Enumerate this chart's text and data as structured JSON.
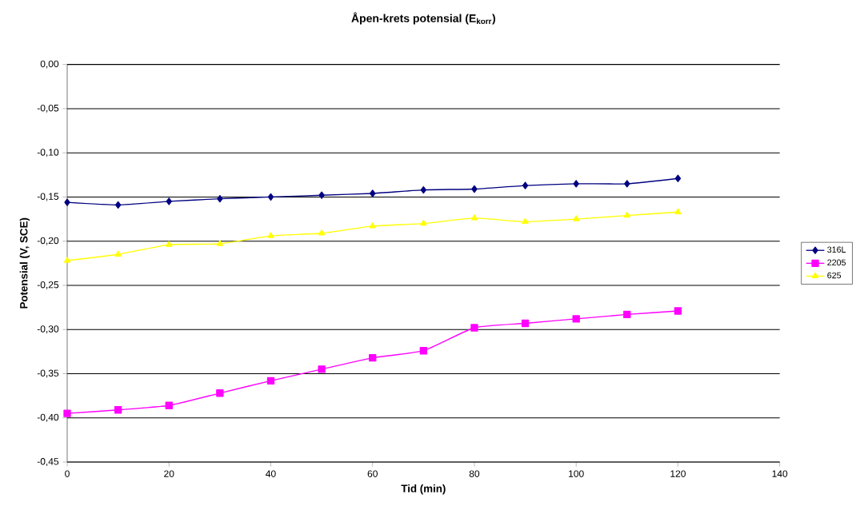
{
  "chart_data": {
    "type": "line",
    "title": "Åpen-krets potensial (E$_{korr}$)",
    "xlabel": "Tid (min)",
    "ylabel": "Potensial (V, SCE)",
    "x": [
      0,
      10,
      20,
      30,
      40,
      50,
      60,
      70,
      80,
      90,
      100,
      110,
      120
    ],
    "series": [
      {
        "name": "316L",
        "color": "#000080",
        "marker": "diamond",
        "values": [
          -0.156,
          -0.159,
          -0.155,
          -0.152,
          -0.15,
          -0.148,
          -0.146,
          -0.142,
          -0.141,
          -0.137,
          -0.135,
          -0.135,
          -0.129
        ]
      },
      {
        "name": "2205",
        "color": "#ff00ff",
        "marker": "square",
        "values": [
          -0.395,
          -0.391,
          -0.386,
          -0.372,
          -0.358,
          -0.345,
          -0.332,
          -0.324,
          -0.298,
          -0.293,
          -0.288,
          -0.283,
          -0.279
        ]
      },
      {
        "name": "625",
        "color": "#ffff00",
        "marker": "triangle",
        "values": [
          -0.222,
          -0.215,
          -0.204,
          -0.203,
          -0.194,
          -0.191,
          -0.183,
          -0.18,
          -0.174,
          -0.178,
          -0.175,
          -0.171,
          -0.167
        ]
      }
    ],
    "xlim": [
      0,
      140
    ],
    "xticks": [
      0,
      20,
      40,
      60,
      80,
      100,
      120,
      140
    ],
    "ylim": [
      -0.45,
      0
    ],
    "yticks": [
      {
        "value": -0.45,
        "label": "-0,45"
      },
      {
        "value": -0.4,
        "label": "-0,40"
      },
      {
        "value": -0.35,
        "label": "-0,35"
      },
      {
        "value": -0.3,
        "label": "-0,30"
      },
      {
        "value": -0.25,
        "label": "-0,25"
      },
      {
        "value": -0.2,
        "label": "-0,20"
      },
      {
        "value": -0.15,
        "label": "-0,15"
      },
      {
        "value": -0.1,
        "label": "-0,10"
      },
      {
        "value": -0.05,
        "label": "-0,05"
      },
      {
        "value": 0,
        "label": "0,00"
      }
    ],
    "grid": "y",
    "legend": "right",
    "line_style": "solid"
  }
}
